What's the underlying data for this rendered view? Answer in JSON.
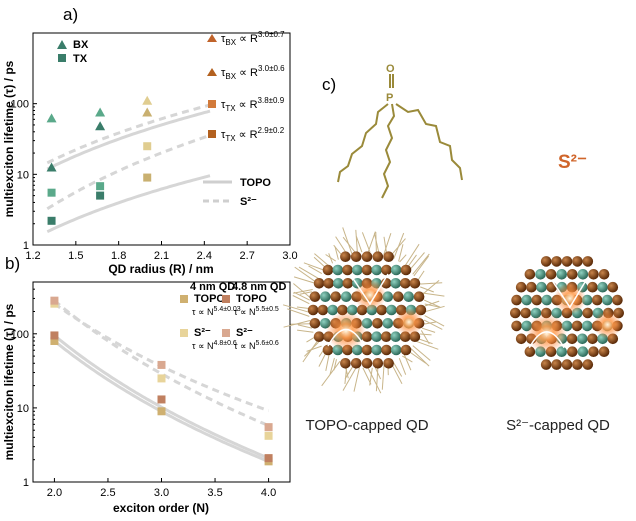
{
  "panel_labels": {
    "a": "a)",
    "b": "b)",
    "c": "c)"
  },
  "chart_data": [
    {
      "type": "scatter",
      "panel": "a",
      "xlabel": "QD radius (R) / nm",
      "ylabel": "multiexciton lifetime (τ) / ps",
      "xlim": [
        1.2,
        3.0
      ],
      "ylim": [
        1,
        1000
      ],
      "yscale": "log",
      "xticks": [
        "1.2",
        "1.5",
        "1.8",
        "2.1",
        "2.4",
        "2.7",
        "3.0"
      ],
      "yticks": [
        "1",
        "10",
        "100"
      ],
      "legend": {
        "bx": "BX",
        "tx": "TX",
        "topo": "TOPO",
        "s2": "S²⁻"
      },
      "series": [
        {
          "name": "BX",
          "ligand": "TOPO",
          "color": "#3a7d6a",
          "marker": "triangle",
          "x": [
            1.33,
            1.67,
            2.0
          ],
          "y": [
            12.5,
            48,
            75
          ]
        },
        {
          "name": "BX",
          "ligand": "S2-",
          "color": "#3a7d6a",
          "marker": "triangle",
          "x": [
            1.33,
            1.67,
            2.0
          ],
          "y": [
            62,
            75,
            110
          ]
        },
        {
          "name": "TX",
          "ligand": "TOPO",
          "color": "#3a7d6a",
          "marker": "square",
          "x": [
            1.33,
            1.67,
            2.0
          ],
          "y": [
            2.2,
            5.0,
            9.0
          ]
        },
        {
          "name": "TX",
          "ligand": "S2-",
          "color": "#3a7d6a",
          "marker": "square",
          "x": [
            1.33,
            1.67,
            2.0
          ],
          "y": [
            5.5,
            6.8,
            25
          ]
        }
      ],
      "fit_labels": [
        {
          "tau": "τ",
          "sub": "BX",
          "rest": " ∝ R",
          "exp": "3.0±0.7",
          "color": "#c0632a",
          "alpha": 1.0
        },
        {
          "tau": "τ",
          "sub": "BX",
          "rest": " ∝ R",
          "exp": "3.0±0.6",
          "color": "#c0632a",
          "alpha": 1.0
        },
        {
          "tau": "τ",
          "sub": "TX",
          "rest": " ∝ R",
          "exp": "3.8±0.9",
          "color": "#c0632a",
          "alpha": 1.0
        },
        {
          "tau": "τ",
          "sub": "TX",
          "rest": " ∝ R",
          "exp": "2.9±0.2",
          "color": "#c0632a",
          "alpha": 1.0
        }
      ],
      "fits": [
        {
          "label": "BX S2-",
          "style": "dashed",
          "a": 11.0,
          "p": 3.0
        },
        {
          "label": "BX TOPO",
          "style": "solid",
          "a": 9.0,
          "p": 3.0
        },
        {
          "label": "TX S2-",
          "style": "dashed",
          "a": 2.0,
          "p": 3.8
        },
        {
          "label": "TX TOPO",
          "style": "solid",
          "a": 1.2,
          "p": 2.9
        }
      ]
    },
    {
      "type": "scatter",
      "panel": "b",
      "xlabel": "exciton order (N)",
      "ylabel": "multiexciton lifetime (τ) / ps",
      "xlim": [
        1.8,
        4.2
      ],
      "ylim": [
        1,
        500
      ],
      "yscale": "log",
      "xticks": [
        "2.0",
        "2.5",
        "3.0",
        "3.5",
        "4.0"
      ],
      "yticks": [
        "1",
        "10",
        "100"
      ],
      "legend_headers": {
        "qd4": "4 nm QD",
        "qd48": "4.8 nm QD"
      },
      "legend_entries": [
        {
          "text": "TOPO",
          "fit": "τ ∝ N",
          "exp": "5.4±0.03",
          "color": "#cfb070"
        },
        {
          "text": "TOPO",
          "fit": "τ ∝ N",
          "exp": "5.5±0.5",
          "color": "#c08060"
        },
        {
          "text": "S²⁻",
          "fit": "τ ∝ N",
          "exp": "4.8±0.6",
          "color": "#e8d49a"
        },
        {
          "text": "S²⁻",
          "fit": "τ ∝ N",
          "exp": "5.6±0.6",
          "color": "#d9a890"
        }
      ],
      "series": [
        {
          "name": "4 nm TOPO",
          "color": "#cfb070",
          "x": [
            2,
            3,
            4
          ],
          "y": [
            80,
            9,
            1.9
          ]
        },
        {
          "name": "4.8 nm TOPO",
          "color": "#c08060",
          "x": [
            2,
            3,
            4
          ],
          "y": [
            95,
            13,
            2.1
          ]
        },
        {
          "name": "4 nm S2-",
          "color": "#e8d49a",
          "x": [
            2,
            3,
            4
          ],
          "y": [
            255,
            25,
            4.2
          ]
        },
        {
          "name": "4.8 nm S2-",
          "color": "#d9a890",
          "x": [
            2,
            3,
            4
          ],
          "y": [
            280,
            38,
            5.5
          ]
        }
      ],
      "fits": [
        {
          "style": "solid",
          "a": 80,
          "p": 5.4
        },
        {
          "style": "solid",
          "a": 95,
          "p": 5.5
        },
        {
          "style": "dashed",
          "a": 255,
          "p": 4.8
        },
        {
          "style": "dashed",
          "a": 280,
          "p": 5.6
        }
      ]
    }
  ],
  "panel_c": {
    "ion_label": "S²⁻",
    "topo_caption": "TOPO-capped QD",
    "s2_caption": "S²⁻-capped QD",
    "molecule_atoms": {
      "o": "O",
      "p": "P"
    },
    "colors": {
      "shell_brown": "#7a3f14",
      "core_teal": "#4a9a86",
      "ligand": "#9a8a3a",
      "glow": "#ff7a2a",
      "ion": "#d0652a"
    }
  }
}
